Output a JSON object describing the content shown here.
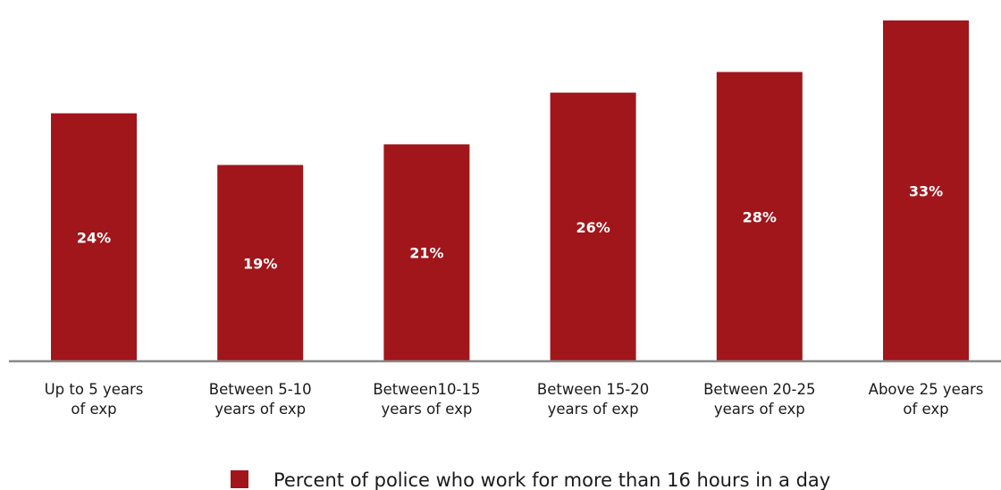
{
  "chart_data": {
    "type": "bar",
    "categories": [
      [
        "Up to 5 years",
        "of exp"
      ],
      [
        "Between 5-10",
        "years of exp"
      ],
      [
        "Between10-15",
        "years of exp"
      ],
      [
        "Between 15-20",
        "years of exp"
      ],
      [
        "Between 20-25",
        "years of exp"
      ],
      [
        "Above 25 years",
        "of exp"
      ]
    ],
    "series": [
      {
        "name": "Percent of police who work for more than 16 hours in a day",
        "values": [
          24,
          19,
          21,
          26,
          28,
          33
        ],
        "value_labels": [
          "24%",
          "19%",
          "21%",
          "26%",
          "28%",
          "33%"
        ]
      }
    ],
    "title": "",
    "xlabel": "",
    "ylabel": "",
    "ylim": [
      0,
      33.5
    ],
    "grid": false,
    "legend_position": "bottom",
    "colors": {
      "bar": "#a0161b",
      "axis": "#888888"
    }
  }
}
